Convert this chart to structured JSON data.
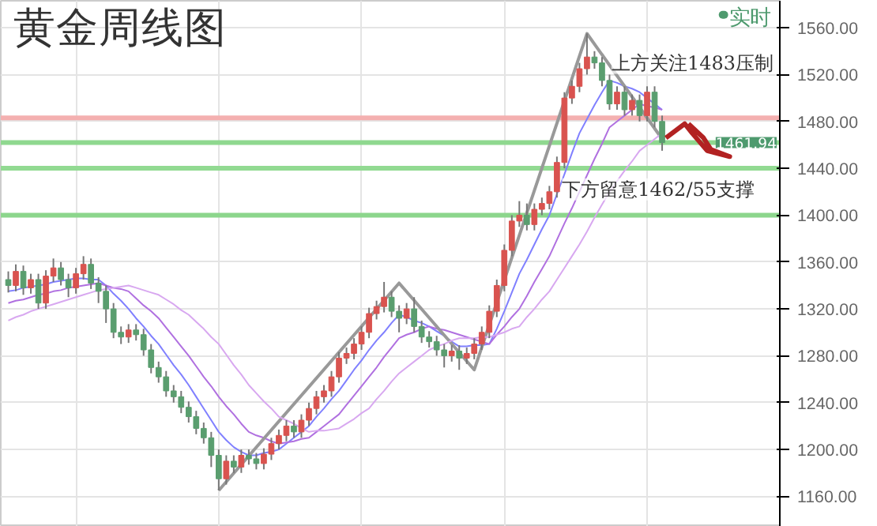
{
  "chart_data": {
    "type": "candlestick",
    "title": "黄金周线图",
    "categories": [
      null,
      null,
      null,
      null,
      null,
      null,
      null,
      null,
      null,
      null,
      null,
      null,
      null,
      null,
      null,
      null,
      null,
      null,
      null,
      null,
      null,
      null,
      null,
      null,
      null,
      null,
      null,
      null,
      null,
      null,
      null,
      null,
      null,
      null,
      null,
      null,
      null,
      null,
      null,
      null,
      null,
      null,
      null,
      null,
      null,
      null,
      null,
      null,
      null,
      null,
      null,
      null,
      null,
      null,
      null,
      null,
      null,
      null,
      null,
      null,
      null,
      null,
      null,
      null,
      null,
      null,
      null,
      null,
      null,
      null,
      null,
      null,
      null,
      null,
      null,
      null,
      null,
      null,
      null,
      null,
      null,
      null,
      null,
      null,
      null,
      null,
      null,
      null
    ],
    "ohlc": [
      [
        1345,
        1352,
        1334,
        1340
      ],
      [
        1340,
        1358,
        1335,
        1352
      ],
      [
        1352,
        1357,
        1332,
        1338
      ],
      [
        1338,
        1350,
        1333,
        1345
      ],
      [
        1345,
        1350,
        1320,
        1325
      ],
      [
        1325,
        1353,
        1320,
        1348
      ],
      [
        1348,
        1363,
        1343,
        1355
      ],
      [
        1355,
        1360,
        1340,
        1345
      ],
      [
        1345,
        1350,
        1330,
        1338
      ],
      [
        1338,
        1355,
        1333,
        1350
      ],
      [
        1350,
        1365,
        1345,
        1358
      ],
      [
        1358,
        1363,
        1337,
        1342
      ],
      [
        1342,
        1347,
        1325,
        1335
      ],
      [
        1335,
        1340,
        1308,
        1320
      ],
      [
        1320,
        1325,
        1295,
        1300
      ],
      [
        1300,
        1305,
        1290,
        1296
      ],
      [
        1296,
        1307,
        1291,
        1302
      ],
      [
        1302,
        1307,
        1293,
        1298
      ],
      [
        1298,
        1303,
        1280,
        1285
      ],
      [
        1285,
        1290,
        1265,
        1270
      ],
      [
        1270,
        1275,
        1257,
        1262
      ],
      [
        1262,
        1267,
        1245,
        1250
      ],
      [
        1250,
        1255,
        1240,
        1245
      ],
      [
        1245,
        1250,
        1231,
        1236
      ],
      [
        1236,
        1241,
        1223,
        1228
      ],
      [
        1228,
        1233,
        1213,
        1218
      ],
      [
        1218,
        1223,
        1205,
        1210
      ],
      [
        1210,
        1215,
        1185,
        1195
      ],
      [
        1195,
        1200,
        1165,
        1175
      ],
      [
        1175,
        1195,
        1170,
        1190
      ],
      [
        1190,
        1195,
        1180,
        1185
      ],
      [
        1185,
        1200,
        1180,
        1195
      ],
      [
        1195,
        1200,
        1187,
        1192
      ],
      [
        1192,
        1197,
        1183,
        1188
      ],
      [
        1188,
        1201,
        1183,
        1196
      ],
      [
        1196,
        1210,
        1191,
        1205
      ],
      [
        1205,
        1217,
        1200,
        1212
      ],
      [
        1212,
        1225,
        1207,
        1220
      ],
      [
        1220,
        1225,
        1210,
        1215
      ],
      [
        1215,
        1230,
        1210,
        1225
      ],
      [
        1225,
        1240,
        1220,
        1235
      ],
      [
        1235,
        1250,
        1230,
        1245
      ],
      [
        1245,
        1255,
        1240,
        1250
      ],
      [
        1250,
        1267,
        1245,
        1262
      ],
      [
        1262,
        1283,
        1257,
        1278
      ],
      [
        1278,
        1287,
        1273,
        1282
      ],
      [
        1282,
        1295,
        1277,
        1290
      ],
      [
        1290,
        1305,
        1285,
        1300
      ],
      [
        1300,
        1321,
        1295,
        1316
      ],
      [
        1316,
        1327,
        1311,
        1322
      ],
      [
        1322,
        1343,
        1317,
        1330
      ],
      [
        1330,
        1335,
        1313,
        1318
      ],
      [
        1318,
        1323,
        1300,
        1312
      ],
      [
        1312,
        1325,
        1307,
        1320
      ],
      [
        1320,
        1330,
        1300,
        1305
      ],
      [
        1305,
        1310,
        1291,
        1296
      ],
      [
        1296,
        1301,
        1287,
        1292
      ],
      [
        1292,
        1297,
        1280,
        1285
      ],
      [
        1285,
        1290,
        1270,
        1280
      ],
      [
        1280,
        1289,
        1275,
        1284
      ],
      [
        1284,
        1289,
        1268,
        1278
      ],
      [
        1278,
        1287,
        1273,
        1282
      ],
      [
        1282,
        1295,
        1277,
        1290
      ],
      [
        1290,
        1305,
        1285,
        1300
      ],
      [
        1300,
        1323,
        1295,
        1318
      ],
      [
        1318,
        1345,
        1313,
        1340
      ],
      [
        1340,
        1375,
        1335,
        1370
      ],
      [
        1370,
        1400,
        1365,
        1395
      ],
      [
        1395,
        1412,
        1390,
        1400
      ],
      [
        1400,
        1410,
        1387,
        1392
      ],
      [
        1392,
        1410,
        1387,
        1405
      ],
      [
        1405,
        1415,
        1400,
        1410
      ],
      [
        1410,
        1425,
        1405,
        1420
      ],
      [
        1420,
        1450,
        1415,
        1445
      ],
      [
        1445,
        1505,
        1440,
        1500
      ],
      [
        1500,
        1515,
        1495,
        1510
      ],
      [
        1510,
        1530,
        1505,
        1525
      ],
      [
        1525,
        1555,
        1520,
        1535
      ],
      [
        1535,
        1540,
        1525,
        1530
      ],
      [
        1530,
        1535,
        1510,
        1515
      ],
      [
        1515,
        1520,
        1490,
        1495
      ],
      [
        1495,
        1510,
        1490,
        1505
      ],
      [
        1505,
        1510,
        1485,
        1490
      ],
      [
        1490,
        1503,
        1485,
        1498
      ],
      [
        1498,
        1503,
        1480,
        1485
      ],
      [
        1485,
        1510,
        1480,
        1505
      ],
      [
        1505,
        1510,
        1475,
        1480
      ],
      [
        1480,
        1485,
        1455,
        1462
      ]
    ],
    "series": [
      {
        "type": "line",
        "color": "#8080ff",
        "values": [
          1335,
          1336,
          1338,
          1339,
          1340,
          1341,
          1343,
          1344,
          1345,
          1346,
          1346,
          1345,
          1345,
          1340,
          1333,
          1327,
          1320,
          1312,
          1305,
          1297,
          1290,
          1281,
          1272,
          1264,
          1255,
          1245,
          1235,
          1225,
          1215,
          1208,
          1202,
          1198,
          1195,
          1195,
          1197,
          1198,
          1200,
          1205,
          1210,
          1215,
          1220,
          1228,
          1235,
          1243,
          1250,
          1259,
          1268,
          1276,
          1285,
          1293,
          1300,
          1308,
          1315,
          1313,
          1310,
          1308,
          1305,
          1301,
          1297,
          1292,
          1288,
          1288,
          1289,
          1289,
          1290,
          1303,
          1318,
          1334,
          1350,
          1362,
          1375,
          1388,
          1400,
          1418,
          1435,
          1453,
          1470,
          1482,
          1494,
          1505,
          1515,
          1513,
          1510,
          1508,
          1505,
          1500,
          1495,
          1490
        ]
      },
      {
        "type": "line",
        "color": "#b070e0",
        "values": [
          1325,
          1327,
          1328,
          1330,
          1332,
          1333,
          1335,
          1336,
          1338,
          1339,
          1340,
          1341,
          1342,
          1340,
          1338,
          1337,
          1335,
          1329,
          1323,
          1318,
          1312,
          1304,
          1296,
          1288,
          1280,
          1271,
          1262,
          1254,
          1245,
          1237,
          1230,
          1222,
          1215,
          1212,
          1210,
          1207,
          1205,
          1206,
          1207,
          1209,
          1210,
          1215,
          1220,
          1225,
          1230,
          1238,
          1246,
          1254,
          1262,
          1270,
          1279,
          1287,
          1295,
          1298,
          1300,
          1303,
          1305,
          1303,
          1302,
          1300,
          1298,
          1296,
          1294,
          1292,
          1290,
          1298,
          1305,
          1313,
          1320,
          1331,
          1343,
          1354,
          1365,
          1379,
          1393,
          1406,
          1420,
          1434,
          1448,
          1461,
          1475,
          1480,
          1485,
          1490,
          1495,
          1493,
          1492,
          1490
        ]
      },
      {
        "type": "line",
        "color": "#999999",
        "values": [
          null,
          null,
          null,
          null,
          null,
          null,
          null,
          null,
          null,
          null,
          null,
          null,
          null,
          null,
          null,
          null,
          null,
          null,
          null,
          null,
          null,
          null,
          null,
          null,
          null,
          null,
          null,
          null,
          1165,
          null,
          null,
          null,
          null,
          null,
          null,
          null,
          null,
          null,
          null,
          null,
          null,
          null,
          null,
          null,
          null,
          null,
          null,
          null,
          null,
          null,
          null,
          null,
          1342,
          null,
          null,
          null,
          null,
          null,
          null,
          null,
          null,
          null,
          1268,
          null,
          null,
          null,
          null,
          null,
          null,
          null,
          null,
          null,
          null,
          null,
          null,
          null,
          null,
          1555,
          null,
          null,
          null,
          null,
          null,
          null,
          null,
          null,
          null,
          1465
        ]
      },
      {
        "type": "line",
        "color": "#d8a8f0",
        "values": [
          1310,
          1313,
          1315,
          1318,
          1320,
          1322,
          1324,
          1326,
          1328,
          1330,
          1332,
          1334,
          1336,
          1337,
          1338,
          1339,
          1340,
          1338,
          1336,
          1334,
          1332,
          1328,
          1324,
          1319,
          1315,
          1309,
          1303,
          1296,
          1290,
          1281,
          1272,
          1264,
          1255,
          1248,
          1241,
          1235,
          1228,
          1225,
          1222,
          1218,
          1215,
          1216,
          1216,
          1217,
          1218,
          1222,
          1226,
          1231,
          1235,
          1243,
          1250,
          1258,
          1265,
          1270,
          1275,
          1280,
          1285,
          1288,
          1290,
          1293,
          1295,
          1295,
          1295,
          1296,
          1296,
          1298,
          1300,
          1303,
          1305,
          1313,
          1320,
          1328,
          1335,
          1345,
          1355,
          1365,
          1375,
          1386,
          1398,
          1409,
          1420,
          1429,
          1438,
          1446,
          1455,
          1460,
          1465,
          1470
        ]
      }
    ],
    "ylim": [
      1134,
      1583
    ],
    "yticks": [
      {
        "value": 1160,
        "label": "1160.00"
      },
      {
        "value": 1200,
        "label": "1200.00"
      },
      {
        "value": 1240,
        "label": "1240.00"
      },
      {
        "value": 1280,
        "label": "1280.00"
      },
      {
        "value": 1320,
        "label": "1320.00"
      },
      {
        "value": 1360,
        "label": "1360.00"
      },
      {
        "value": 1400,
        "label": "1400.00"
      },
      {
        "value": 1440,
        "label": "1440.00"
      },
      {
        "value": 1480,
        "label": "1480.00"
      },
      {
        "value": 1520,
        "label": "1520.00"
      },
      {
        "value": 1560,
        "label": "1560.00"
      }
    ],
    "grid": true,
    "ref_lines": [
      {
        "axis": "y",
        "value": 1483,
        "label": null,
        "color": "#f4b0b0"
      },
      {
        "axis": "y",
        "value": 1440,
        "label": null,
        "color": "#92da92"
      },
      {
        "axis": "y",
        "value": 1400,
        "label": null,
        "color": "#8cd68c"
      },
      {
        "axis": "y",
        "value": 1461.94,
        "label": "1461.94",
        "color": "#8fd88f"
      }
    ],
    "annotations": [
      "实时",
      "上方关注1483压制",
      "下方留意1462/55支撑"
    ]
  }
}
